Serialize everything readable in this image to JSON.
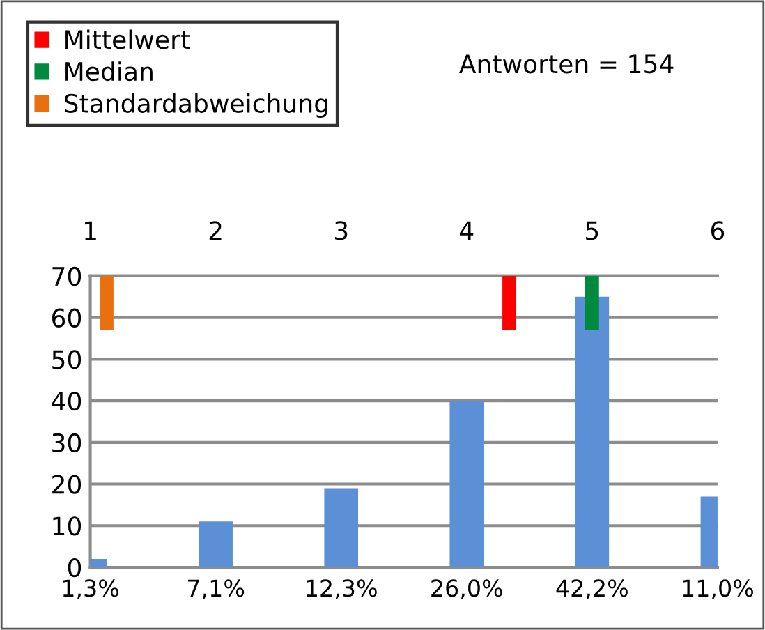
{
  "chart_data": {
    "type": "bar",
    "categories": [
      "1,3%",
      "7,1%",
      "12,3%",
      "26,0%",
      "42,2%",
      "11,0%"
    ],
    "series": [
      {
        "color": "#5b8fd6",
        "values": [
          2,
          11,
          19,
          40,
          65,
          17
        ]
      },
      {
        "name": "Mittelwert",
        "color": "#ff0000",
        "axis": "x2",
        "x": [
          4.34
        ],
        "base": [
          57
        ],
        "values": [
          13
        ]
      },
      {
        "name": "Median",
        "color": "#008a3e",
        "axis": "x2",
        "x": [
          5
        ],
        "base": [
          57
        ],
        "values": [
          13
        ]
      },
      {
        "name": "Standardabweichung",
        "color": "#e8700e",
        "axis": "x2",
        "x": [
          1.13
        ],
        "base": [
          57
        ],
        "values": [
          13
        ]
      }
    ],
    "x2lim": [
      1,
      6
    ],
    "x2ticks": [
      1,
      2,
      3,
      4,
      5,
      6
    ],
    "ylim": [
      0,
      70
    ],
    "yticks": [
      0,
      10,
      20,
      30,
      40,
      50,
      60,
      70
    ],
    "grid": "y",
    "legend": "top left",
    "annotations": [
      "Antworten = 154"
    ]
  }
}
